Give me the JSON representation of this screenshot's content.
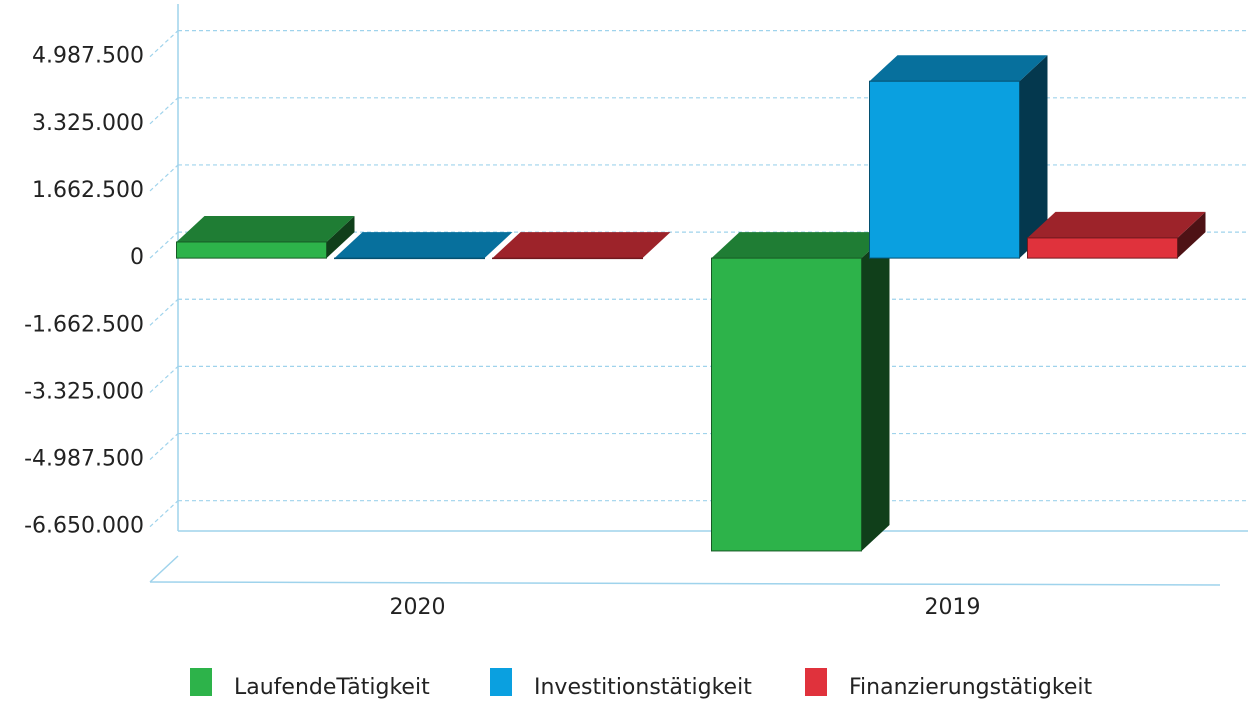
{
  "chart_data": {
    "type": "bar3d",
    "categories": [
      "2020",
      "2019"
    ],
    "series": [
      {
        "name": "LaufendeTätigkeit",
        "color": "#2db34a",
        "values": [
          400000,
          -7250000
        ]
      },
      {
        "name": "Investitionstätigkeit",
        "color": "#0aa0e0",
        "values": [
          0,
          4380000
        ]
      },
      {
        "name": "Finanzierungstätigkeit",
        "color": "#e0323c",
        "values": [
          0,
          500000
        ]
      }
    ],
    "ylim": [
      -7400000,
      5400000
    ],
    "yticks": [
      {
        "value": -6650000,
        "label": "-6.650.000"
      },
      {
        "value": -4987500,
        "label": "-4.987.500"
      },
      {
        "value": -3325000,
        "label": "-3.325.000"
      },
      {
        "value": -1662500,
        "label": "-1.662.500"
      },
      0,
      {
        "value": 1662500,
        "label": "1.662.500"
      },
      {
        "value": 3325000,
        "label": "3.325.000"
      },
      {
        "value": 4987500,
        "label": "4.987.500"
      }
    ],
    "grid": true,
    "legend": "bottom"
  }
}
